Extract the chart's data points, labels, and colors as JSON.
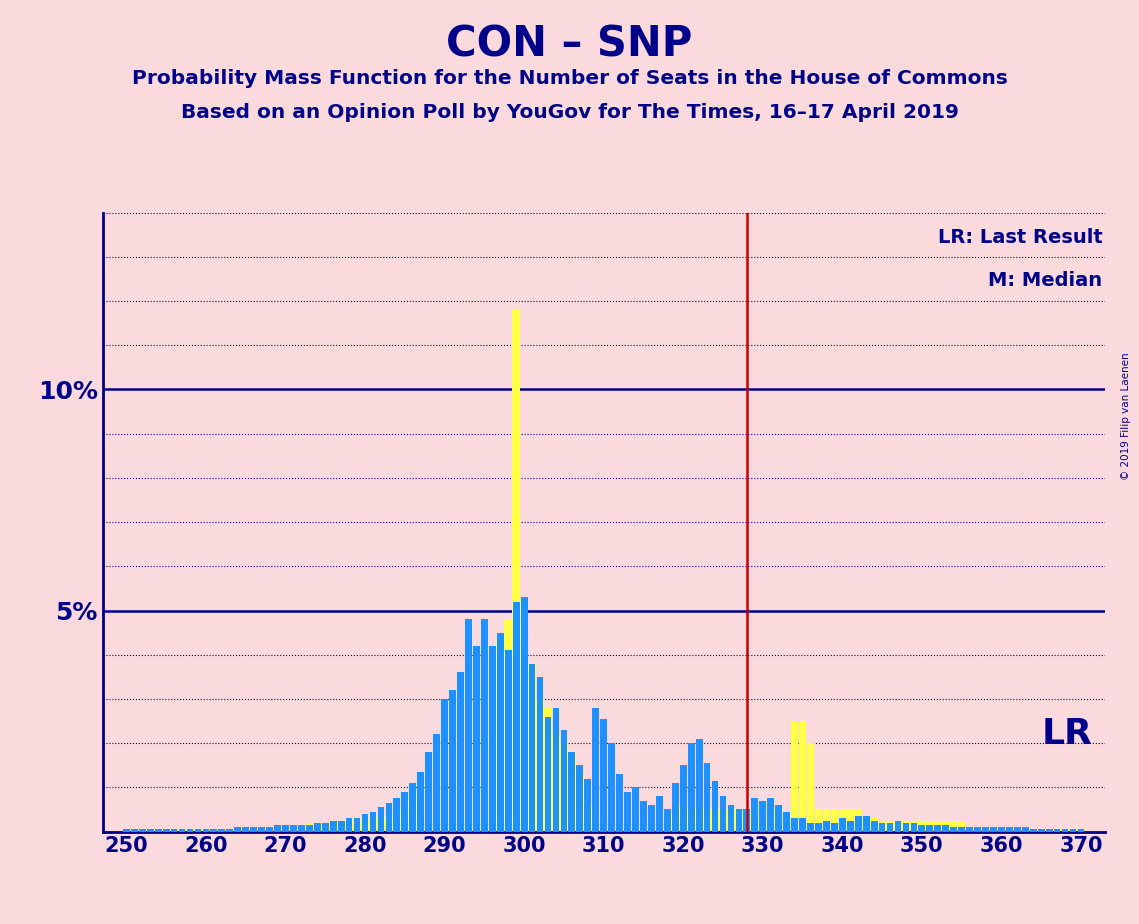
{
  "title": "CON – SNP",
  "subtitle1": "Probability Mass Function for the Number of Seats in the House of Commons",
  "subtitle2": "Based on an Opinion Poll by YouGov for The Times, 16–17 April 2019",
  "copyright": "© 2019 Filip van Laenen",
  "background_color": "#fadadd",
  "title_color": "#00008B",
  "bar_color_blue": "#1E90FF",
  "bar_color_yellow": "#FFFF44",
  "lr_line_color": "#cc0000",
  "grid_color": "#00008B",
  "lr_line_x": 328,
  "xlim": [
    247,
    373
  ],
  "ylim": [
    0,
    14
  ],
  "ytick_labels_shown": {
    "5": "5%",
    "10": "10%"
  },
  "xticks": [
    250,
    260,
    270,
    280,
    290,
    300,
    310,
    320,
    330,
    340,
    350,
    360,
    370
  ],
  "bars": [
    {
      "x": 250,
      "blue": 0.05,
      "yellow": 0.05
    },
    {
      "x": 251,
      "blue": 0.05,
      "yellow": 0.05
    },
    {
      "x": 252,
      "blue": 0.05,
      "yellow": 0.05
    },
    {
      "x": 253,
      "blue": 0.05,
      "yellow": 0.05
    },
    {
      "x": 254,
      "blue": 0.05,
      "yellow": 0.05
    },
    {
      "x": 255,
      "blue": 0.05,
      "yellow": 0.05
    },
    {
      "x": 256,
      "blue": 0.05,
      "yellow": 0.05
    },
    {
      "x": 257,
      "blue": 0.05,
      "yellow": 0.05
    },
    {
      "x": 258,
      "blue": 0.05,
      "yellow": 0.05
    },
    {
      "x": 259,
      "blue": 0.05,
      "yellow": 0.05
    },
    {
      "x": 260,
      "blue": 0.05,
      "yellow": 0.05
    },
    {
      "x": 261,
      "blue": 0.05,
      "yellow": 0.05
    },
    {
      "x": 262,
      "blue": 0.05,
      "yellow": 0.05
    },
    {
      "x": 263,
      "blue": 0.05,
      "yellow": 0.05
    },
    {
      "x": 264,
      "blue": 0.1,
      "yellow": 0.1
    },
    {
      "x": 265,
      "blue": 0.1,
      "yellow": 0.1
    },
    {
      "x": 266,
      "blue": 0.1,
      "yellow": 0.1
    },
    {
      "x": 267,
      "blue": 0.1,
      "yellow": 0.1
    },
    {
      "x": 268,
      "blue": 0.1,
      "yellow": 0.1
    },
    {
      "x": 269,
      "blue": 0.15,
      "yellow": 0.15
    },
    {
      "x": 270,
      "blue": 0.15,
      "yellow": 0.1
    },
    {
      "x": 271,
      "blue": 0.15,
      "yellow": 0.15
    },
    {
      "x": 272,
      "blue": 0.15,
      "yellow": 0.15
    },
    {
      "x": 273,
      "blue": 0.15,
      "yellow": 0.2
    },
    {
      "x": 274,
      "blue": 0.2,
      "yellow": 0.2
    },
    {
      "x": 275,
      "blue": 0.2,
      "yellow": 0.2
    },
    {
      "x": 276,
      "blue": 0.25,
      "yellow": 0.2
    },
    {
      "x": 277,
      "blue": 0.25,
      "yellow": 0.25
    },
    {
      "x": 278,
      "blue": 0.3,
      "yellow": 0.25
    },
    {
      "x": 279,
      "blue": 0.3,
      "yellow": 0.3
    },
    {
      "x": 280,
      "blue": 0.4,
      "yellow": 0.25
    },
    {
      "x": 281,
      "blue": 0.45,
      "yellow": 0.3
    },
    {
      "x": 282,
      "blue": 0.55,
      "yellow": 0.3
    },
    {
      "x": 283,
      "blue": 0.65,
      "yellow": 0.3
    },
    {
      "x": 284,
      "blue": 0.75,
      "yellow": 0.5
    },
    {
      "x": 285,
      "blue": 0.9,
      "yellow": 0.7
    },
    {
      "x": 286,
      "blue": 1.1,
      "yellow": 0.8
    },
    {
      "x": 287,
      "blue": 1.35,
      "yellow": 1.25
    },
    {
      "x": 288,
      "blue": 1.8,
      "yellow": 1.3
    },
    {
      "x": 289,
      "blue": 2.2,
      "yellow": 1.6
    },
    {
      "x": 290,
      "blue": 3.0,
      "yellow": 2.2
    },
    {
      "x": 291,
      "blue": 3.2,
      "yellow": 2.5
    },
    {
      "x": 292,
      "blue": 3.6,
      "yellow": 2.5
    },
    {
      "x": 293,
      "blue": 4.8,
      "yellow": 3.0
    },
    {
      "x": 294,
      "blue": 4.2,
      "yellow": 3.5
    },
    {
      "x": 295,
      "blue": 4.8,
      "yellow": 3.8
    },
    {
      "x": 296,
      "blue": 4.2,
      "yellow": 4.0
    },
    {
      "x": 297,
      "blue": 4.5,
      "yellow": 4.3
    },
    {
      "x": 298,
      "blue": 4.1,
      "yellow": 4.8
    },
    {
      "x": 299,
      "blue": 5.2,
      "yellow": 11.8
    },
    {
      "x": 300,
      "blue": 5.3,
      "yellow": 5.2
    },
    {
      "x": 301,
      "blue": 3.8,
      "yellow": 3.8
    },
    {
      "x": 302,
      "blue": 3.5,
      "yellow": 3.0
    },
    {
      "x": 303,
      "blue": 2.6,
      "yellow": 2.8
    },
    {
      "x": 304,
      "blue": 2.8,
      "yellow": 2.2
    },
    {
      "x": 305,
      "blue": 2.3,
      "yellow": 2.0
    },
    {
      "x": 306,
      "blue": 1.8,
      "yellow": 1.75
    },
    {
      "x": 307,
      "blue": 1.5,
      "yellow": 1.3
    },
    {
      "x": 308,
      "blue": 1.2,
      "yellow": 0.6
    },
    {
      "x": 309,
      "blue": 2.8,
      "yellow": 1.25
    },
    {
      "x": 310,
      "blue": 2.55,
      "yellow": 1.25
    },
    {
      "x": 311,
      "blue": 2.0,
      "yellow": 1.0
    },
    {
      "x": 312,
      "blue": 1.3,
      "yellow": 0.9
    },
    {
      "x": 313,
      "blue": 0.9,
      "yellow": 0.7
    },
    {
      "x": 314,
      "blue": 1.0,
      "yellow": 0.5
    },
    {
      "x": 315,
      "blue": 0.7,
      "yellow": 0.4
    },
    {
      "x": 316,
      "blue": 0.6,
      "yellow": 0.4
    },
    {
      "x": 317,
      "blue": 0.8,
      "yellow": 0.4
    },
    {
      "x": 318,
      "blue": 0.5,
      "yellow": 0.4
    },
    {
      "x": 319,
      "blue": 1.1,
      "yellow": 0.4
    },
    {
      "x": 320,
      "blue": 1.5,
      "yellow": 0.6
    },
    {
      "x": 321,
      "blue": 2.0,
      "yellow": 0.5
    },
    {
      "x": 322,
      "blue": 2.1,
      "yellow": 0.5
    },
    {
      "x": 323,
      "blue": 1.55,
      "yellow": 0.5
    },
    {
      "x": 324,
      "blue": 1.15,
      "yellow": 0.5
    },
    {
      "x": 325,
      "blue": 0.8,
      "yellow": 0.5
    },
    {
      "x": 326,
      "blue": 0.6,
      "yellow": 0.5
    },
    {
      "x": 327,
      "blue": 0.5,
      "yellow": 0.5
    },
    {
      "x": 328,
      "blue": 0.5,
      "yellow": 0.5
    },
    {
      "x": 329,
      "blue": 0.75,
      "yellow": 0.25
    },
    {
      "x": 330,
      "blue": 0.7,
      "yellow": 0.25
    },
    {
      "x": 331,
      "blue": 0.75,
      "yellow": 0.5
    },
    {
      "x": 332,
      "blue": 0.6,
      "yellow": 0.5
    },
    {
      "x": 333,
      "blue": 0.45,
      "yellow": 0.4
    },
    {
      "x": 334,
      "blue": 0.3,
      "yellow": 2.5
    },
    {
      "x": 335,
      "blue": 0.3,
      "yellow": 2.5
    },
    {
      "x": 336,
      "blue": 0.2,
      "yellow": 2.0
    },
    {
      "x": 337,
      "blue": 0.2,
      "yellow": 0.5
    },
    {
      "x": 338,
      "blue": 0.25,
      "yellow": 0.5
    },
    {
      "x": 339,
      "blue": 0.2,
      "yellow": 0.5
    },
    {
      "x": 340,
      "blue": 0.3,
      "yellow": 0.5
    },
    {
      "x": 341,
      "blue": 0.25,
      "yellow": 0.5
    },
    {
      "x": 342,
      "blue": 0.35,
      "yellow": 0.5
    },
    {
      "x": 343,
      "blue": 0.35,
      "yellow": 0.3
    },
    {
      "x": 344,
      "blue": 0.25,
      "yellow": 0.3
    },
    {
      "x": 345,
      "blue": 0.2,
      "yellow": 0.25
    },
    {
      "x": 346,
      "blue": 0.2,
      "yellow": 0.25
    },
    {
      "x": 347,
      "blue": 0.25,
      "yellow": 0.25
    },
    {
      "x": 348,
      "blue": 0.2,
      "yellow": 0.25
    },
    {
      "x": 349,
      "blue": 0.2,
      "yellow": 0.25
    },
    {
      "x": 350,
      "blue": 0.15,
      "yellow": 0.25
    },
    {
      "x": 351,
      "blue": 0.15,
      "yellow": 0.25
    },
    {
      "x": 352,
      "blue": 0.15,
      "yellow": 0.25
    },
    {
      "x": 353,
      "blue": 0.15,
      "yellow": 0.25
    },
    {
      "x": 354,
      "blue": 0.1,
      "yellow": 0.25
    },
    {
      "x": 355,
      "blue": 0.1,
      "yellow": 0.25
    },
    {
      "x": 356,
      "blue": 0.1,
      "yellow": 0.1
    },
    {
      "x": 357,
      "blue": 0.1,
      "yellow": 0.1
    },
    {
      "x": 358,
      "blue": 0.1,
      "yellow": 0.1
    },
    {
      "x": 359,
      "blue": 0.1,
      "yellow": 0.1
    },
    {
      "x": 360,
      "blue": 0.1,
      "yellow": 0.1
    },
    {
      "x": 361,
      "blue": 0.1,
      "yellow": 0.1
    },
    {
      "x": 362,
      "blue": 0.1,
      "yellow": 0.1
    },
    {
      "x": 363,
      "blue": 0.1,
      "yellow": 0.1
    },
    {
      "x": 364,
      "blue": 0.05,
      "yellow": 0.05
    },
    {
      "x": 365,
      "blue": 0.05,
      "yellow": 0.05
    },
    {
      "x": 366,
      "blue": 0.05,
      "yellow": 0.05
    },
    {
      "x": 367,
      "blue": 0.05,
      "yellow": 0.05
    },
    {
      "x": 368,
      "blue": 0.05,
      "yellow": 0.05
    },
    {
      "x": 369,
      "blue": 0.05,
      "yellow": 0.05
    },
    {
      "x": 370,
      "blue": 0.05,
      "yellow": 0.05
    }
  ],
  "lr_label": "LR",
  "lr_legend": "LR: Last Result",
  "m_legend": "M: Median"
}
